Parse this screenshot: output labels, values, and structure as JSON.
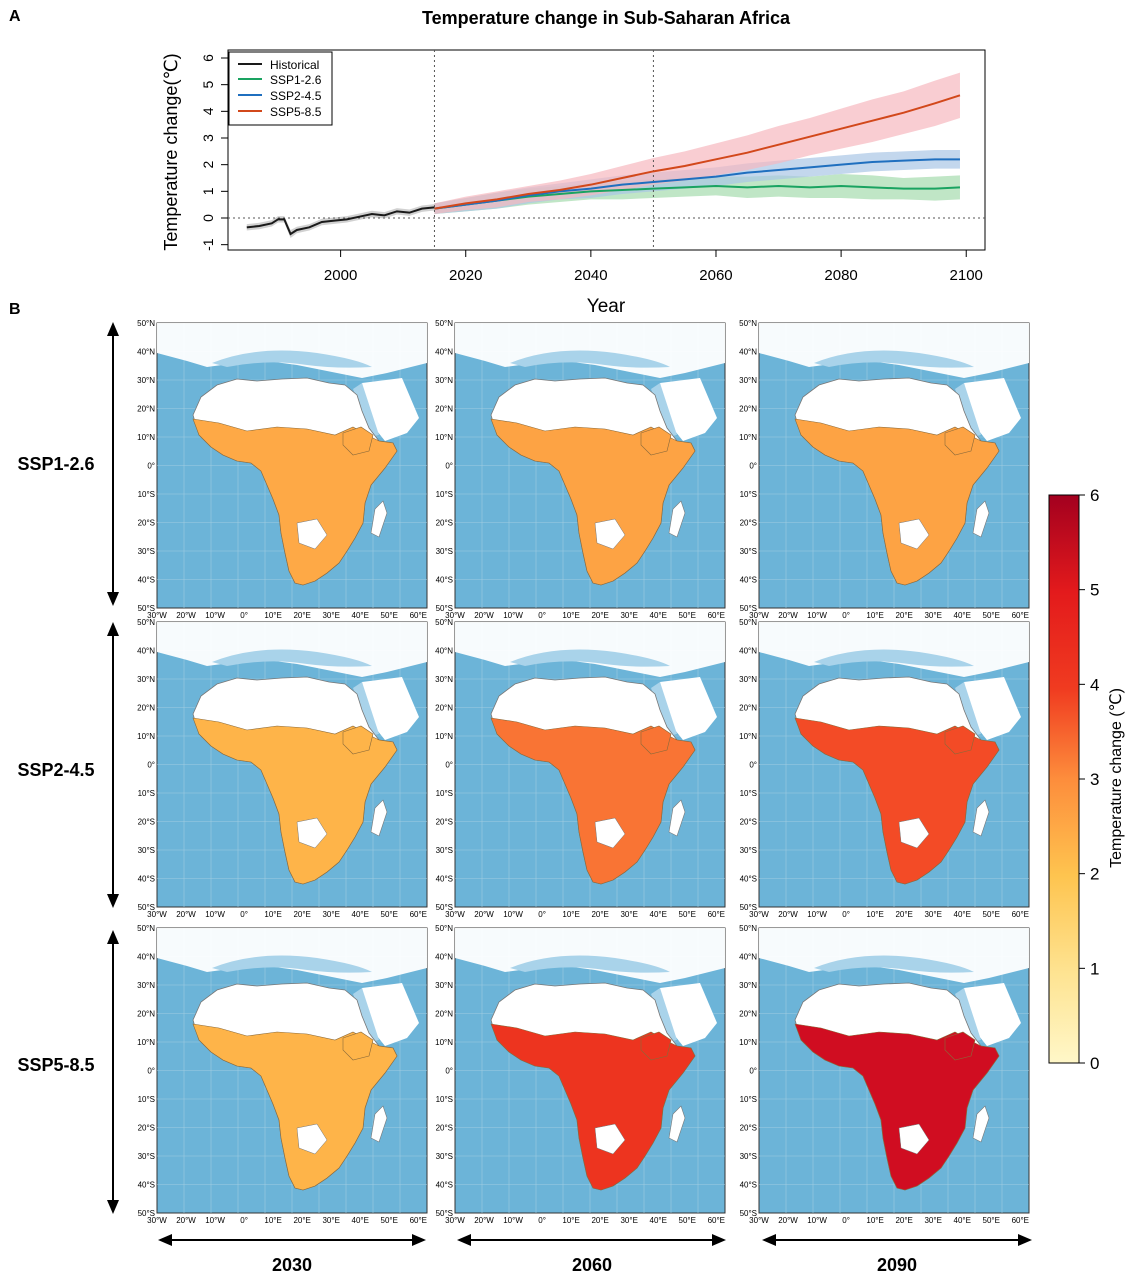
{
  "panels": {
    "a_label": "A",
    "b_label": "B"
  },
  "chart_data": {
    "type": "line",
    "title": "Temperature change in Sub-Saharan Africa",
    "xlabel": "Year",
    "ylabel": "Temperature change(℃)",
    "xlim": [
      1982,
      2103
    ],
    "ylim": [
      -1.2,
      6.3
    ],
    "xticks": [
      2000,
      2020,
      2040,
      2060,
      2080,
      2100
    ],
    "yticks": [
      -1,
      0,
      1,
      2,
      3,
      4,
      5,
      6
    ],
    "vlines": [
      2015,
      2050
    ],
    "hline": 0,
    "grid": false,
    "legend_position": "top-left",
    "legend": [
      "Historical",
      "SSP1-2.6",
      "SSP2-4.5",
      "SSP5-8.5"
    ],
    "series": [
      {
        "name": "Historical",
        "color": "#1a1a1a",
        "band_color": "#bdbdbd",
        "x": [
          1985,
          1987,
          1989,
          1990,
          1991,
          1992,
          1993,
          1995,
          1997,
          1999,
          2001,
          2003,
          2005,
          2007,
          2009,
          2011,
          2013,
          2015
        ],
        "y": [
          -0.35,
          -0.3,
          -0.2,
          -0.05,
          -0.05,
          -0.6,
          -0.45,
          -0.35,
          -0.15,
          -0.1,
          -0.05,
          0.05,
          0.15,
          0.1,
          0.25,
          0.2,
          0.35,
          0.4
        ],
        "band": [
          0.12,
          0.12,
          0.12,
          0.12,
          0.12,
          0.15,
          0.12,
          0.12,
          0.12,
          0.12,
          0.12,
          0.12,
          0.12,
          0.12,
          0.12,
          0.12,
          0.12,
          0.12
        ]
      },
      {
        "name": "SSP1-2.6",
        "color": "#1aa361",
        "band_color": "#a5dcae",
        "x": [
          2015,
          2020,
          2025,
          2030,
          2035,
          2040,
          2045,
          2050,
          2055,
          2060,
          2065,
          2070,
          2075,
          2080,
          2085,
          2090,
          2095,
          2099
        ],
        "y": [
          0.35,
          0.5,
          0.65,
          0.8,
          0.9,
          1.0,
          1.05,
          1.1,
          1.15,
          1.2,
          1.15,
          1.2,
          1.15,
          1.2,
          1.15,
          1.1,
          1.1,
          1.15
        ],
        "band": [
          0.2,
          0.25,
          0.3,
          0.3,
          0.3,
          0.3,
          0.35,
          0.35,
          0.35,
          0.35,
          0.4,
          0.4,
          0.4,
          0.45,
          0.45,
          0.4,
          0.45,
          0.45
        ]
      },
      {
        "name": "SSP2-4.5",
        "color": "#1f6fbf",
        "band_color": "#a9c6e6",
        "x": [
          2015,
          2020,
          2025,
          2030,
          2035,
          2040,
          2045,
          2050,
          2055,
          2060,
          2065,
          2070,
          2075,
          2080,
          2085,
          2090,
          2095,
          2099
        ],
        "y": [
          0.35,
          0.5,
          0.65,
          0.85,
          1.0,
          1.1,
          1.25,
          1.35,
          1.45,
          1.55,
          1.7,
          1.8,
          1.9,
          2.0,
          2.1,
          2.15,
          2.2,
          2.2
        ],
        "band": [
          0.2,
          0.25,
          0.3,
          0.3,
          0.3,
          0.35,
          0.35,
          0.35,
          0.35,
          0.35,
          0.35,
          0.35,
          0.35,
          0.35,
          0.35,
          0.35,
          0.35,
          0.35
        ]
      },
      {
        "name": "SSP5-8.5",
        "color": "#d2481b",
        "band_color": "#f7b8bf",
        "x": [
          2015,
          2020,
          2025,
          2030,
          2035,
          2040,
          2045,
          2050,
          2055,
          2060,
          2065,
          2070,
          2075,
          2080,
          2085,
          2090,
          2095,
          2099
        ],
        "y": [
          0.35,
          0.55,
          0.7,
          0.9,
          1.05,
          1.25,
          1.5,
          1.75,
          1.95,
          2.2,
          2.45,
          2.75,
          3.05,
          3.35,
          3.65,
          3.95,
          4.3,
          4.6
        ],
        "band": [
          0.2,
          0.25,
          0.3,
          0.3,
          0.35,
          0.4,
          0.45,
          0.5,
          0.55,
          0.6,
          0.65,
          0.7,
          0.7,
          0.75,
          0.8,
          0.8,
          0.85,
          0.85
        ]
      }
    ]
  },
  "map_grid": {
    "rows": [
      "SSP1-2.6",
      "SSP2-4.5",
      "SSP5-8.5"
    ],
    "columns": [
      "2030",
      "2060",
      "2090"
    ],
    "lat_labels": [
      "50°N",
      "40°N",
      "30°N",
      "20°N",
      "10°N",
      "0°",
      "10°S",
      "20°S",
      "30°S",
      "40°S",
      "50°S"
    ],
    "lon_labels": [
      "30°W",
      "20°W",
      "10°W",
      "0°",
      "10°E",
      "20°E",
      "30°E",
      "40°E",
      "50°E",
      "60°E"
    ],
    "values": [
      [
        2.5,
        2.6,
        2.6
      ],
      [
        2.3,
        3.3,
        3.8
      ],
      [
        2.3,
        4.2,
        5.5
      ]
    ]
  },
  "colorbar": {
    "label": "Temperature change (℃)",
    "min": 0,
    "max": 6,
    "ticks": [
      "0",
      "1",
      "2",
      "3",
      "4",
      "5",
      "6"
    ],
    "stops": [
      "#fff7c8",
      "#fee391",
      "#fec44f",
      "#fd8d3c",
      "#f03b20",
      "#e31a1c",
      "#bd0026"
    ]
  },
  "colors": {
    "ocean": "#6cb4d8",
    "land": "#ffffff"
  }
}
